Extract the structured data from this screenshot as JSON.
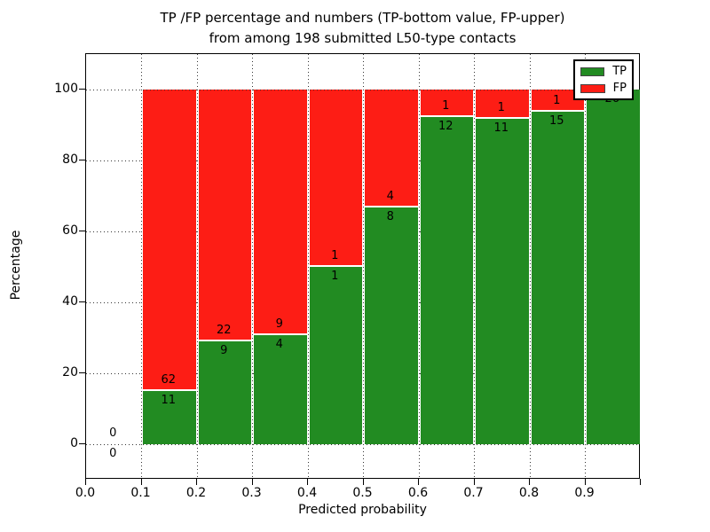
{
  "title": {
    "line1": "TP /FP percentage and numbers (TP-bottom value, FP-upper)",
    "line2": "from among 198 submitted L50-type contacts"
  },
  "axes": {
    "xlabel": "Predicted probability",
    "ylabel": "Percentage",
    "x_ticks": [
      "0.0",
      "0.1",
      "0.2",
      "0.3",
      "0.4",
      "0.5",
      "0.6",
      "0.7",
      "0.8",
      "0.9"
    ],
    "y_ticks": [
      "0",
      "20",
      "40",
      "60",
      "80",
      "100"
    ],
    "y_tick_values": [
      0,
      20,
      40,
      60,
      80,
      100
    ]
  },
  "legend": {
    "entries": [
      {
        "label": "TP",
        "color": "#228b22"
      },
      {
        "label": "FP",
        "color": "#fd1d15"
      }
    ]
  },
  "colors": {
    "tp": "#228b22",
    "fp": "#fd1d15",
    "grid": "#333333"
  },
  "chart_data": {
    "type": "bar",
    "stacked": true,
    "normalized": "percent",
    "title": "TP /FP percentage and numbers (TP-bottom value, FP-upper) from among 198 submitted L50-type contacts",
    "xlabel": "Predicted probability",
    "ylabel": "Percentage",
    "xlim": [
      0.0,
      1.0
    ],
    "ylim": [
      -10,
      110
    ],
    "grid": "dotted",
    "legend_position": "upper right",
    "bin_edges": [
      0.0,
      0.1,
      0.2,
      0.3,
      0.4,
      0.5,
      0.6,
      0.7,
      0.8,
      0.9,
      1.0
    ],
    "categories": [
      "0.0-0.1",
      "0.1-0.2",
      "0.2-0.3",
      "0.3-0.4",
      "0.4-0.5",
      "0.5-0.6",
      "0.6-0.7",
      "0.7-0.8",
      "0.8-0.9",
      "0.9-1.0"
    ],
    "series": [
      {
        "name": "TP",
        "color": "#228b22",
        "counts": [
          0,
          11,
          9,
          4,
          1,
          8,
          12,
          11,
          15,
          26
        ],
        "percent": [
          0,
          15.07,
          29.03,
          30.77,
          50.0,
          66.67,
          92.31,
          91.67,
          93.75,
          100.0
        ]
      },
      {
        "name": "FP",
        "color": "#fd1d15",
        "counts": [
          0,
          62,
          22,
          9,
          1,
          4,
          1,
          1,
          1,
          0
        ],
        "percent": [
          0,
          84.93,
          70.97,
          69.23,
          50.0,
          33.33,
          7.69,
          8.33,
          6.25,
          0
        ]
      }
    ],
    "bar_labels": {
      "fp_upper": [
        "0",
        "62",
        "22",
        "9",
        "1",
        "4",
        "1",
        "1",
        "1",
        ""
      ],
      "tp_bottom": [
        "0",
        "11",
        "9",
        "4",
        "1",
        "8",
        "12",
        "11",
        "15",
        "26"
      ]
    },
    "total_submitted": 198
  }
}
